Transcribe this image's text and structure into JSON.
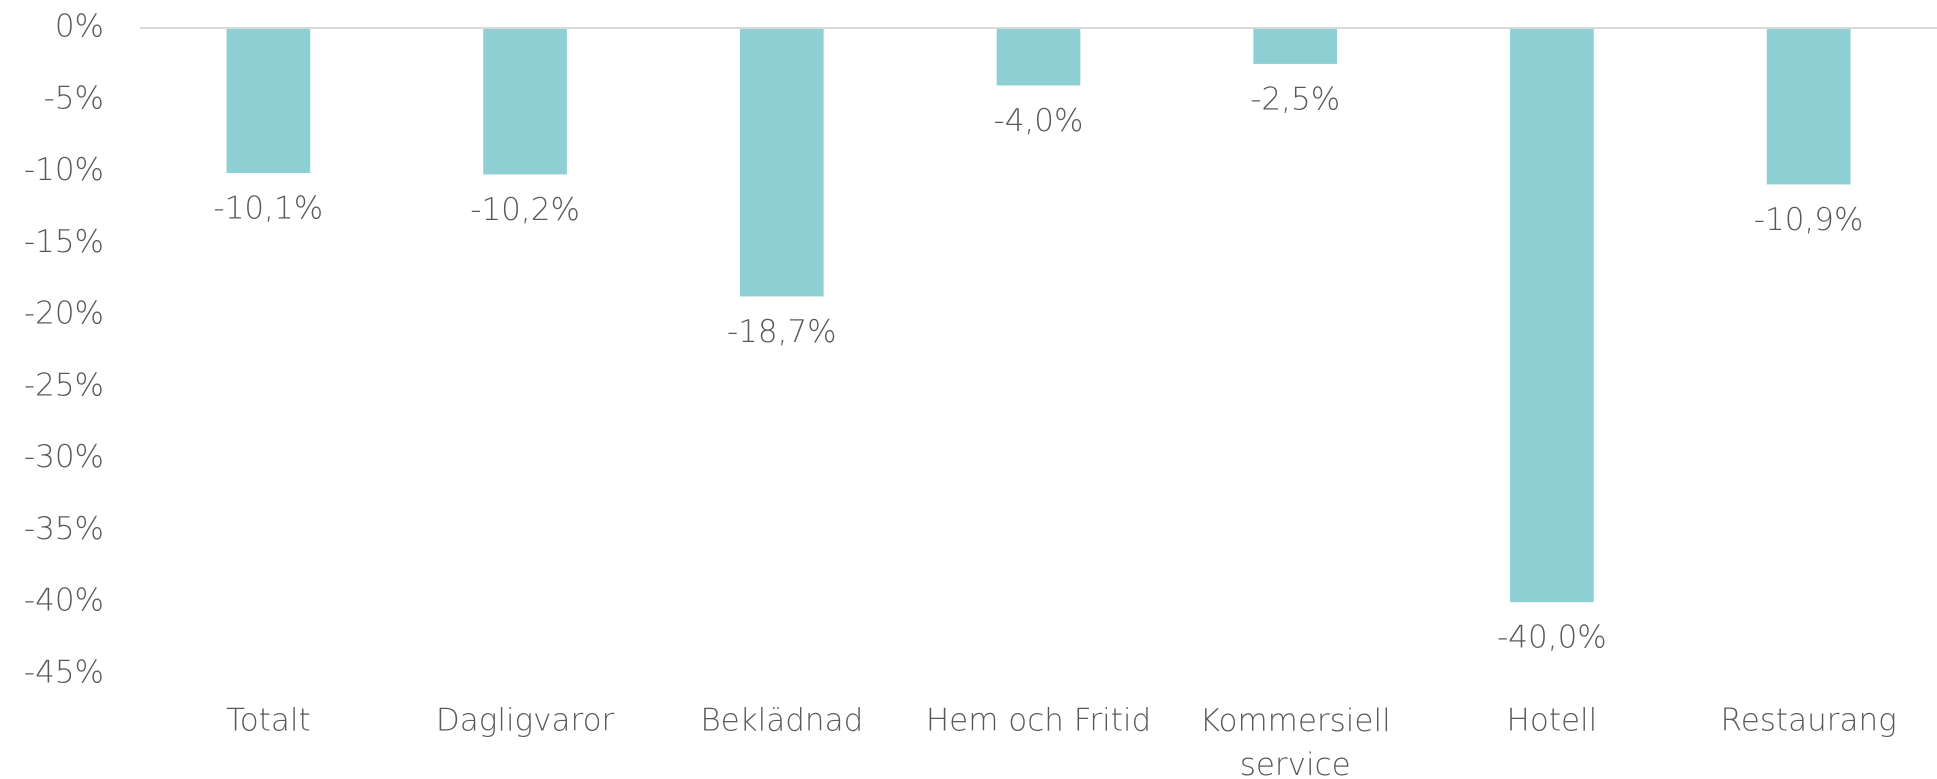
{
  "chart_data": {
    "type": "bar",
    "categories": [
      "Totalt",
      "Dagligvaror",
      "Beklädnad",
      "Hem och Fritid",
      "Kommersiell service",
      "Hotell",
      "Restaurang"
    ],
    "values": [
      -10.1,
      -10.2,
      -18.7,
      -4.0,
      -2.5,
      -40.0,
      -10.9
    ],
    "value_labels": [
      "-10,1%",
      "-10,2%",
      "-18,7%",
      "-4,0%",
      "-2,5%",
      "-40,0%",
      "-10,9%"
    ],
    "color": "#8ecfd4",
    "ylim": [
      -45,
      0
    ],
    "yticks": [
      {
        "value": 0,
        "label": "0%"
      },
      {
        "value": -5,
        "label": "-5%"
      },
      {
        "value": -10,
        "label": "-10%"
      },
      {
        "value": -15,
        "label": "-15%"
      },
      {
        "value": -20,
        "label": "-20%"
      },
      {
        "value": -25,
        "label": "-25%"
      },
      {
        "value": -30,
        "label": "-30%"
      },
      {
        "value": -35,
        "label": "-35%"
      },
      {
        "value": -40,
        "label": "-40%"
      },
      {
        "value": -45,
        "label": "-45%"
      }
    ],
    "grid": false
  }
}
